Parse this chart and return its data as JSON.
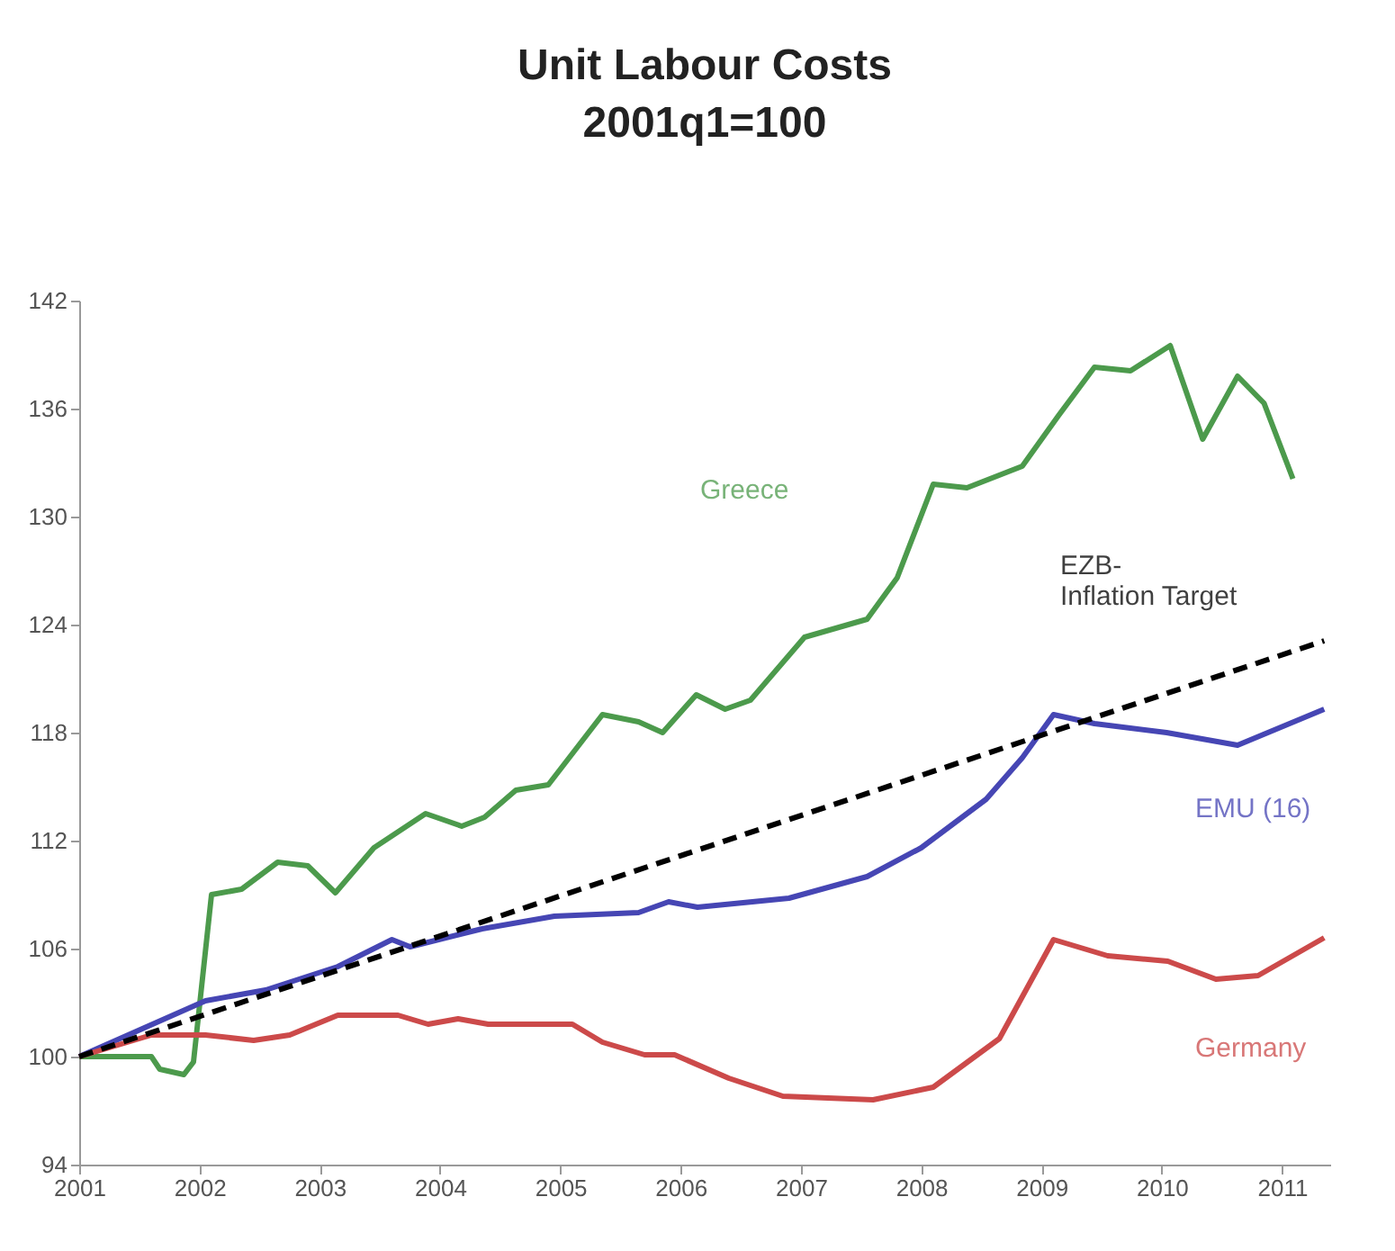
{
  "chart_data": {
    "type": "line",
    "title": "Unit Labour Costs",
    "subtitle": "2001q1=100",
    "xlim": [
      2001,
      2011.4
    ],
    "xticks": [
      2001,
      2002,
      2003,
      2004,
      2005,
      2006,
      2007,
      2008,
      2009,
      2010,
      2011
    ],
    "ylim": [
      94,
      142
    ],
    "yticks": [
      94,
      100,
      106,
      112,
      118,
      124,
      130,
      136,
      142
    ],
    "grid": false,
    "legend": false,
    "marker": "none",
    "series": [
      {
        "name": "Greece",
        "color": "#4c9a4c",
        "line_style": "solid",
        "x": [
          2001.0,
          2001.6,
          2001.67,
          2001.87,
          2001.95,
          2002.1,
          2002.35,
          2002.65,
          2002.9,
          2003.13,
          2003.45,
          2003.88,
          2004.18,
          2004.37,
          2004.63,
          2004.9,
          2005.35,
          2005.65,
          2005.85,
          2006.13,
          2006.37,
          2006.58,
          2007.03,
          2007.55,
          2007.8,
          2008.1,
          2008.38,
          2008.84,
          2009.14,
          2009.44,
          2009.74,
          2010.07,
          2010.34,
          2010.63,
          2010.85,
          2011.09
        ],
        "values": [
          100,
          100,
          99.3,
          99,
          99.7,
          109,
          109.3,
          110.8,
          110.6,
          109.1,
          111.6,
          113.5,
          112.8,
          113.3,
          114.8,
          115.1,
          119,
          118.6,
          118,
          120.1,
          119.3,
          119.8,
          123.3,
          124.3,
          126.6,
          131.8,
          131.6,
          132.8,
          135.6,
          138.3,
          138.1,
          139.5,
          134.3,
          137.8,
          136.3,
          132.1
        ]
      },
      {
        "name": "EMU (16)",
        "color": "#4646b4",
        "line_style": "solid",
        "x": [
          2001.0,
          2002.05,
          2002.55,
          2003.15,
          2003.6,
          2003.75,
          2004.35,
          2004.95,
          2005.65,
          2005.9,
          2006.14,
          2006.9,
          2007.55,
          2008.0,
          2008.54,
          2008.84,
          2009.1,
          2009.44,
          2010.04,
          2010.63,
          2011.35
        ],
        "values": [
          100,
          103.1,
          103.7,
          105,
          106.5,
          106.1,
          107.1,
          107.8,
          108,
          108.6,
          108.3,
          108.8,
          110,
          111.6,
          114.3,
          116.6,
          119,
          118.5,
          118,
          117.3,
          119.3
        ]
      },
      {
        "name": "Germany",
        "color": "#cc4a4a",
        "line_style": "solid",
        "x": [
          2001.0,
          2001.6,
          2002.05,
          2002.45,
          2002.75,
          2003.15,
          2003.65,
          2003.9,
          2004.15,
          2004.4,
          2005.1,
          2005.35,
          2005.7,
          2005.95,
          2006.4,
          2006.85,
          2007.6,
          2008.1,
          2008.65,
          2009.1,
          2009.55,
          2010.05,
          2010.45,
          2010.8,
          2011.35
        ],
        "values": [
          100,
          101.2,
          101.2,
          100.9,
          101.2,
          102.3,
          102.3,
          101.8,
          102.1,
          101.8,
          101.8,
          100.8,
          100.1,
          100.1,
          98.8,
          97.8,
          97.6,
          98.3,
          101,
          106.5,
          105.6,
          105.3,
          104.3,
          104.5,
          106.6
        ]
      },
      {
        "name": "EZB-\nInflation Target",
        "color": "#000000",
        "line_style": "dashed",
        "x": [
          2001.0,
          2011.35
        ],
        "values": [
          100,
          123.1
        ]
      }
    ]
  }
}
